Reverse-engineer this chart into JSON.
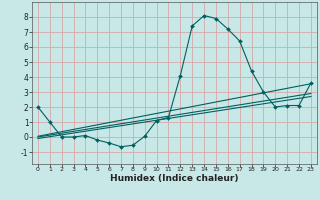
{
  "xlabel": "Humidex (Indice chaleur)",
  "bg_color": "#c8e8e8",
  "grid_color_major": "#d4a8a8",
  "line_color": "#006060",
  "xlim": [
    -0.5,
    23.5
  ],
  "ylim": [
    -1.8,
    9.0
  ],
  "yticks": [
    -1,
    0,
    1,
    2,
    3,
    4,
    5,
    6,
    7,
    8
  ],
  "xticks": [
    0,
    1,
    2,
    3,
    4,
    5,
    6,
    7,
    8,
    9,
    10,
    11,
    12,
    13,
    14,
    15,
    16,
    17,
    18,
    19,
    20,
    21,
    22,
    23
  ],
  "curve_x": [
    0,
    1,
    2,
    3,
    4,
    5,
    6,
    7,
    8,
    9,
    10,
    11,
    12,
    13,
    14,
    15,
    16,
    17,
    18,
    19,
    20,
    21,
    22,
    23
  ],
  "curve_y": [
    2.0,
    1.0,
    0.0,
    0.0,
    0.1,
    -0.2,
    -0.4,
    -0.65,
    -0.55,
    0.05,
    1.1,
    1.3,
    4.1,
    7.4,
    8.1,
    7.9,
    7.2,
    6.4,
    4.4,
    3.0,
    2.0,
    2.1,
    2.1,
    3.6
  ],
  "line2_x": [
    0,
    23
  ],
  "line2_y": [
    0.05,
    3.55
  ],
  "line3_x": [
    0,
    23
  ],
  "line3_y": [
    0.0,
    2.9
  ],
  "line4_x": [
    0,
    23
  ],
  "line4_y": [
    -0.1,
    2.7
  ]
}
